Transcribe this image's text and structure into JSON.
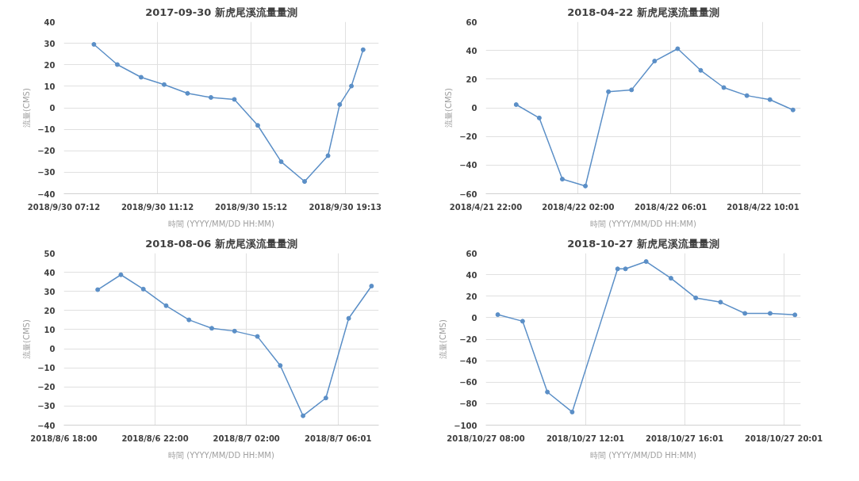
{
  "chart_data": [
    {
      "type": "line",
      "title": "2017-09-30 新虎尾溪流量量測",
      "xlabel": "時間 (YYYY/MM/DD HH:MM)",
      "ylabel": "流量(CMS)",
      "grid": true,
      "marker": "circle",
      "line_style": "solid",
      "xlim": [
        "2018-09-30T07:12",
        "2018-09-30T20:39"
      ],
      "ylim": [
        -40,
        40
      ],
      "yticks": [
        -40,
        -30,
        -20,
        -10,
        0,
        10,
        20,
        30,
        40
      ],
      "xticks": [
        {
          "value": "2018-09-30T07:12",
          "label": "2018/9/30 07:12"
        },
        {
          "value": "2018-09-30T11:12",
          "label": "2018/9/30 11:12"
        },
        {
          "value": "2018-09-30T15:12",
          "label": "2018/9/30 15:12"
        },
        {
          "value": "2018-09-30T19:13",
          "label": "2018/9/30 19:13"
        }
      ],
      "series": [
        {
          "color": "#5b8fc7",
          "x": [
            "2018-09-30T08:29",
            "2018-09-30T09:29",
            "2018-09-30T10:30",
            "2018-09-30T11:29",
            "2018-09-30T12:29",
            "2018-09-30T13:29",
            "2018-09-30T14:29",
            "2018-09-30T15:29",
            "2018-09-30T16:29",
            "2018-09-30T17:29",
            "2018-09-30T18:29",
            "2018-09-30T18:59",
            "2018-09-30T19:29",
            "2018-09-30T19:59"
          ],
          "values": [
            29.5,
            20.1,
            14.2,
            10.8,
            6.7,
            4.8,
            3.9,
            -8.2,
            -25.1,
            -34.3,
            -22.3,
            1.5,
            10.1,
            27.0
          ]
        }
      ]
    },
    {
      "type": "line",
      "title": "2018-04-22 新虎尾溪流量量測",
      "xlabel": "時間 (YYYY/MM/DD HH:MM)",
      "ylabel": "流量(CMS)",
      "grid": true,
      "marker": "circle",
      "line_style": "solid",
      "xlim": [
        "2018-04-21T22:00",
        "2018-04-22T11:39"
      ],
      "ylim": [
        -60,
        60
      ],
      "yticks": [
        -60,
        -40,
        -20,
        0,
        20,
        40,
        60
      ],
      "xticks": [
        {
          "value": "2018-04-21T22:00",
          "label": "2018/4/21 22:00"
        },
        {
          "value": "2018-04-22T02:00",
          "label": "2018/4/22 02:00"
        },
        {
          "value": "2018-04-22T06:01",
          "label": "2018/4/22 06:01"
        },
        {
          "value": "2018-04-22T10:01",
          "label": "2018/4/22 10:01"
        }
      ],
      "series": [
        {
          "color": "#5b8fc7",
          "x": [
            "2018-04-21T23:19",
            "2018-04-22T00:19",
            "2018-04-22T01:19",
            "2018-04-22T02:19",
            "2018-04-22T03:19",
            "2018-04-22T04:19",
            "2018-04-22T05:19",
            "2018-04-22T06:19",
            "2018-04-22T07:19",
            "2018-04-22T08:19",
            "2018-04-22T09:19",
            "2018-04-22T10:19",
            "2018-04-22T11:19"
          ],
          "values": [
            2.2,
            -7.1,
            -49.8,
            -54.6,
            11.2,
            12.5,
            32.6,
            41.2,
            26.1,
            14.1,
            8.5,
            5.7,
            -1.5
          ]
        }
      ]
    },
    {
      "type": "line",
      "title": "2018-08-06 新虎尾溪流量量測",
      "xlabel": "時間 (YYYY/MM/DD HH:MM)",
      "ylabel": "流量(CMS)",
      "grid": true,
      "marker": "circle",
      "line_style": "solid",
      "xlim": [
        "2018-08-06T18:00",
        "2018-08-07T07:48"
      ],
      "ylim": [
        -40,
        50
      ],
      "yticks": [
        -40,
        -30,
        -20,
        -10,
        0,
        10,
        20,
        30,
        40,
        50
      ],
      "xticks": [
        {
          "value": "2018-08-06T18:00",
          "label": "2018/8/6 18:00"
        },
        {
          "value": "2018-08-06T22:00",
          "label": "2018/8/6 22:00"
        },
        {
          "value": "2018-08-07T02:00",
          "label": "2018/8/7 02:00"
        },
        {
          "value": "2018-08-07T06:01",
          "label": "2018/8/7 06:01"
        }
      ],
      "series": [
        {
          "color": "#5b8fc7",
          "x": [
            "2018-08-06T19:29",
            "2018-08-06T20:30",
            "2018-08-06T21:29",
            "2018-08-06T22:29",
            "2018-08-06T23:29",
            "2018-08-07T00:29",
            "2018-08-07T01:29",
            "2018-08-07T02:29",
            "2018-08-07T03:29",
            "2018-08-07T04:29",
            "2018-08-07T05:29",
            "2018-08-07T06:29",
            "2018-08-07T07:29"
          ],
          "values": [
            30.9,
            38.7,
            31.2,
            22.5,
            15.1,
            10.7,
            9.2,
            6.4,
            -8.8,
            -35.1,
            -25.8,
            15.9,
            32.8
          ]
        }
      ]
    },
    {
      "type": "line",
      "title": "2018-10-27 新虎尾溪流量量測",
      "xlabel": "時間 (YYYY/MM/DD HH:MM)",
      "ylabel": "流量(CMS)",
      "grid": true,
      "marker": "circle",
      "line_style": "solid",
      "xlim": [
        "2018-10-27T08:00",
        "2018-10-27T20:42"
      ],
      "ylim": [
        -100,
        60
      ],
      "yticks": [
        -100,
        -80,
        -60,
        -40,
        -20,
        0,
        20,
        40,
        60
      ],
      "xticks": [
        {
          "value": "2018-10-27T08:00",
          "label": "2018/10/27 08:00"
        },
        {
          "value": "2018-10-27T12:01",
          "label": "2018/10/27 12:01"
        },
        {
          "value": "2018-10-27T16:01",
          "label": "2018/10/27 16:01"
        },
        {
          "value": "2018-10-27T20:01",
          "label": "2018/10/27 20:01"
        }
      ],
      "series": [
        {
          "color": "#5b8fc7",
          "x": [
            "2018-10-27T08:29",
            "2018-10-27T09:29",
            "2018-10-27T10:29",
            "2018-10-27T11:29",
            "2018-10-27T13:19",
            "2018-10-27T13:38",
            "2018-10-27T14:28",
            "2018-10-27T15:28",
            "2018-10-27T16:28",
            "2018-10-27T17:28",
            "2018-10-27T18:27",
            "2018-10-27T19:28",
            "2018-10-27T20:28"
          ],
          "values": [
            2.8,
            -3.3,
            -69.2,
            -87.8,
            45.4,
            45.4,
            52.2,
            36.7,
            18.4,
            14.4,
            4.0,
            4.0,
            2.6
          ]
        }
      ]
    }
  ]
}
